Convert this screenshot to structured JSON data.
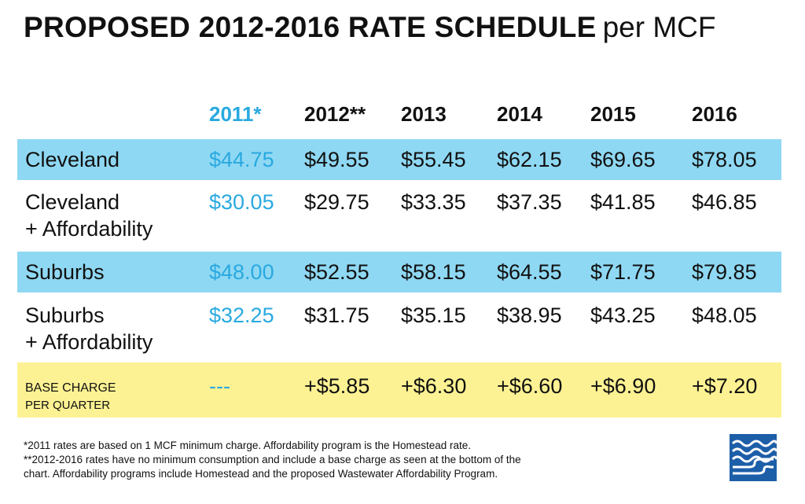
{
  "chart_data": {
    "type": "table",
    "title": "PROPOSED 2012-2016 RATE SCHEDULE",
    "title_suffix": "per MCF",
    "columns": [
      "2011*",
      "2012**",
      "2013",
      "2014",
      "2015",
      "2016"
    ],
    "rows": [
      {
        "label": [
          "Cleveland"
        ],
        "values": [
          "$44.75",
          "$49.55",
          "$55.45",
          "$62.15",
          "$69.65",
          "$78.05"
        ],
        "band": "blue"
      },
      {
        "label": [
          "Cleveland",
          "+ Affordability"
        ],
        "values": [
          "$30.05",
          "$29.75",
          "$33.35",
          "$37.35",
          "$41.85",
          "$46.85"
        ],
        "band": "none"
      },
      {
        "label": [
          "Suburbs"
        ],
        "values": [
          "$48.00",
          "$52.55",
          "$58.15",
          "$64.55",
          "$71.75",
          "$79.85"
        ],
        "band": "blue"
      },
      {
        "label": [
          "Suburbs",
          "+ Affordability"
        ],
        "values": [
          "$32.25",
          "$31.75",
          "$35.15",
          "$38.95",
          "$43.25",
          "$48.05"
        ],
        "band": "none"
      },
      {
        "label": [
          "BASE CHARGE",
          "PER QUARTER"
        ],
        "values": [
          "---",
          "+$5.85",
          "+$6.30",
          "+$6.60",
          "+$6.90",
          "+$7.20"
        ],
        "band": "yellow"
      }
    ],
    "footnotes": [
      "*2011 rates are based on 1 MCF minimum charge. Affordability program is the Homestead rate.",
      "**2012-2016 rates have no minimum consumption and include a base charge as seen at the bottom of the",
      "chart. Affordability programs include Homestead and the proposed Wastewater Affordability Program."
    ]
  },
  "colors": {
    "accent_blue": "#29a9e0",
    "band_blue": "#8fd8f3",
    "band_yellow": "#fdf293",
    "logo_blue": "#1d5ea8"
  }
}
